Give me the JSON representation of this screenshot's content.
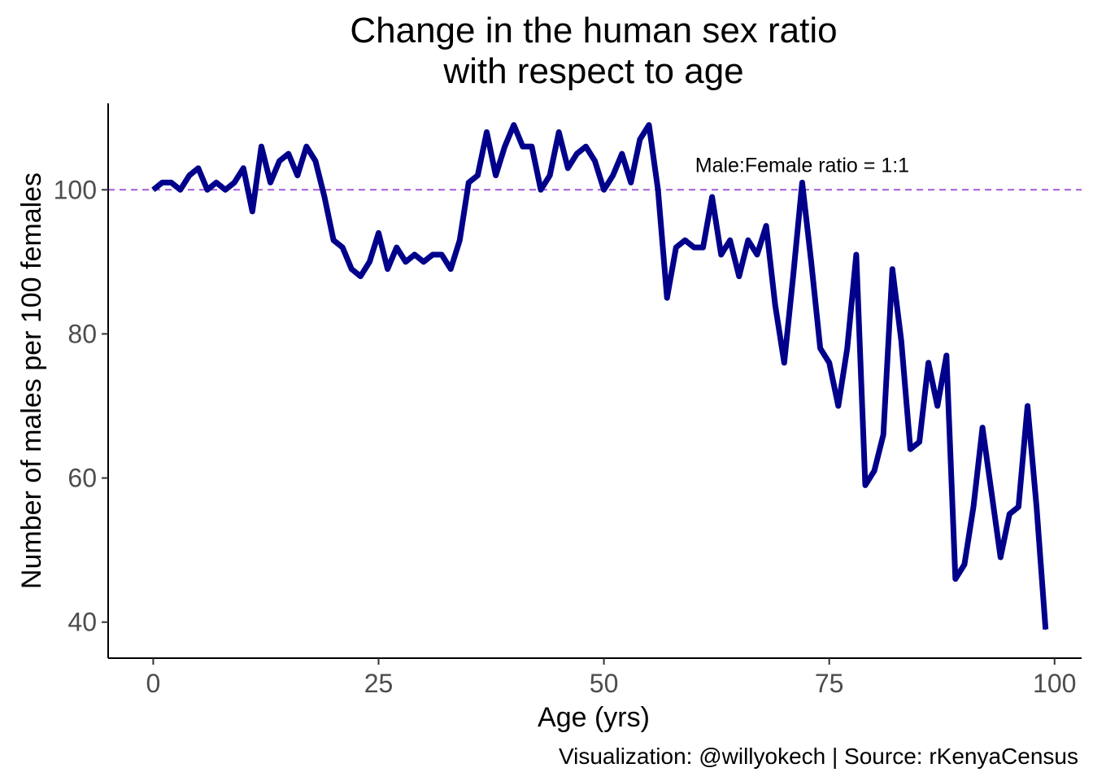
{
  "chart_data": {
    "type": "line",
    "title_lines": [
      "Change in the human sex ratio",
      "with respect to age"
    ],
    "xlabel": "Age (yrs)",
    "ylabel": "Number of males per 100 females",
    "caption": "Visualization: @willyokech | Source: rKenyaCensus",
    "xlim": [
      -5,
      103
    ],
    "ylim": [
      35,
      112
    ],
    "x_ticks": [
      0,
      25,
      50,
      75,
      100
    ],
    "y_ticks": [
      40,
      60,
      80,
      100
    ],
    "grid": false,
    "legend": "none",
    "reference_line": {
      "y": 100,
      "label": "Male:Female ratio = 1:1",
      "label_x": 72,
      "label_y": 103.5,
      "color": "#a35ad6",
      "style": "dashed"
    },
    "series": [
      {
        "color": "#00008b",
        "x": [
          0,
          1,
          2,
          3,
          4,
          5,
          6,
          7,
          8,
          9,
          10,
          11,
          12,
          13,
          14,
          15,
          16,
          17,
          18,
          19,
          20,
          21,
          22,
          23,
          24,
          25,
          26,
          27,
          28,
          29,
          30,
          31,
          32,
          33,
          34,
          35,
          36,
          37,
          38,
          39,
          40,
          41,
          42,
          43,
          44,
          45,
          46,
          47,
          48,
          49,
          50,
          51,
          52,
          53,
          54,
          55,
          56,
          57,
          58,
          59,
          60,
          61,
          62,
          63,
          64,
          65,
          66,
          67,
          68,
          69,
          70,
          71,
          72,
          73,
          74,
          75,
          76,
          77,
          78,
          79,
          80,
          81,
          82,
          83,
          84,
          85,
          86,
          87,
          88,
          89,
          90,
          91,
          92,
          93,
          94,
          95,
          96,
          97,
          98,
          99
        ],
        "y": [
          100,
          101,
          101,
          100,
          102,
          103,
          100,
          101,
          100,
          101,
          103,
          97,
          106,
          101,
          104,
          105,
          102,
          106,
          104,
          99,
          93,
          92,
          89,
          88,
          90,
          94,
          89,
          92,
          90,
          91,
          90,
          91,
          91,
          89,
          93,
          101,
          102,
          108,
          102,
          106,
          109,
          106,
          106,
          100,
          102,
          108,
          103,
          105,
          106,
          104,
          100,
          102,
          105,
          101,
          107,
          109,
          100,
          85,
          92,
          93,
          92,
          92,
          99,
          91,
          93,
          88,
          93,
          91,
          95,
          84,
          76,
          88,
          101,
          90,
          78,
          76,
          70,
          78,
          91,
          59,
          61,
          66,
          89,
          79,
          64,
          65,
          76,
          70,
          77,
          46,
          48,
          56,
          67,
          58,
          49,
          55,
          56,
          70,
          56,
          39
        ]
      }
    ]
  }
}
